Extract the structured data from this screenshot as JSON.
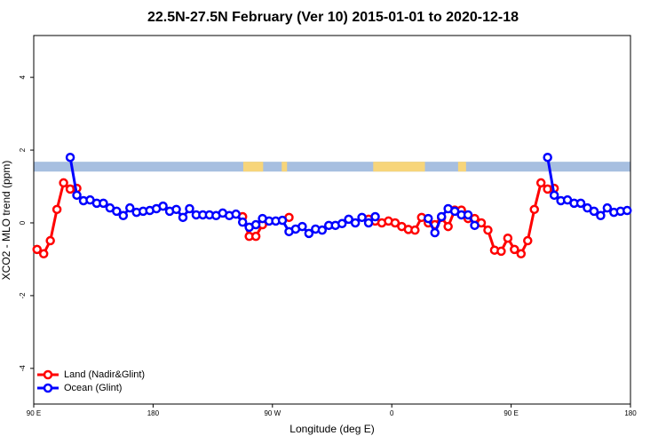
{
  "chart_data": {
    "type": "line",
    "title": "22.5N-27.5N February (Ver 10)   2015-01-01 to 2020-12-18",
    "x_label": "Longitude (deg E)",
    "y_label": "XCO2 - MLO trend (ppm)",
    "xlim": [
      90,
      540
    ],
    "ylim": [
      -4.98,
      5.15
    ],
    "xticks": [
      {
        "value": 90,
        "label": "90 E"
      },
      180,
      {
        "value": 270,
        "label": "90 W"
      },
      {
        "value": 360,
        "label": "0"
      },
      {
        "value": 450,
        "label": "90 E"
      },
      {
        "value": 540,
        "label": "180"
      }
    ],
    "yticks": [
      -4,
      -2,
      0,
      2,
      4
    ],
    "legend": "bottom-left",
    "band": {
      "ylim": [
        1.41,
        1.68
      ],
      "ocean_color": "#a7bfe0",
      "land_color": "#f7d57a",
      "land": [
        [
          248,
          263
        ],
        [
          277,
          281
        ],
        [
          346,
          385
        ],
        [
          410,
          416
        ]
      ]
    },
    "x": [
      92.5,
      97.5,
      102.5,
      107.5,
      112.5,
      117.5,
      122.5,
      127.5,
      132.5,
      137.5,
      142.5,
      147.5,
      152.5,
      157.5,
      162.5,
      167.5,
      172.5,
      177.5,
      182.5,
      187.5,
      192.5,
      197.5,
      202.5,
      207.5,
      212.5,
      217.5,
      222.5,
      227.5,
      232.5,
      237.5,
      242.5,
      247.5,
      252.5,
      257.5,
      262.5,
      267.5,
      272.5,
      277.5,
      282.5,
      287.5,
      292.5,
      297.5,
      302.5,
      307.5,
      312.5,
      317.5,
      322.5,
      327.5,
      332.5,
      337.5,
      342.5,
      347.5,
      352.5,
      357.5,
      362.5,
      367.5,
      372.5,
      377.5,
      382.5,
      387.5,
      392.5,
      397.5,
      402.5,
      407.5,
      412.5,
      417.5,
      422.5,
      427.5,
      432.5,
      437.5,
      442.5,
      447.5,
      452.5,
      457.5,
      462.5,
      467.5,
      472.5,
      477.5,
      482.5,
      487.5,
      492.5,
      497.5,
      502.5,
      507.5,
      512.5,
      517.5,
      522.5,
      527.5,
      532.5,
      537.5
    ],
    "series": [
      {
        "name": "Land (Nadir&Glint)",
        "color": "#ff0000",
        "values": [
          -0.73,
          -0.85,
          -0.49,
          0.37,
          1.1,
          0.93,
          0.95,
          null,
          null,
          null,
          null,
          null,
          null,
          null,
          null,
          null,
          null,
          null,
          null,
          null,
          null,
          null,
          null,
          null,
          null,
          null,
          null,
          null,
          null,
          null,
          null,
          0.17,
          -0.37,
          -0.37,
          -0.05,
          null,
          null,
          null,
          0.15,
          null,
          null,
          null,
          null,
          null,
          null,
          null,
          null,
          null,
          null,
          null,
          0.1,
          0.05,
          0.0,
          0.05,
          0.0,
          -0.1,
          -0.18,
          -0.2,
          0.15,
          0.0,
          -0.05,
          0.15,
          -0.1,
          0.35,
          0.35,
          0.12,
          0.12,
          0.0,
          -0.2,
          -0.75,
          -0.78,
          -0.42,
          -0.73,
          -0.85,
          -0.49,
          0.37,
          1.1,
          0.93,
          0.95,
          null,
          null,
          null,
          null,
          null,
          null,
          null,
          null,
          null,
          null,
          null
        ]
      },
      {
        "name": "Ocean (Glint)",
        "color": "#0000ff",
        "values": [
          null,
          null,
          null,
          null,
          null,
          1.8,
          0.76,
          0.61,
          0.63,
          0.54,
          0.54,
          0.41,
          0.32,
          0.2,
          0.41,
          0.29,
          0.32,
          0.34,
          0.39,
          0.46,
          0.32,
          0.37,
          0.15,
          0.39,
          0.22,
          0.22,
          0.22,
          0.2,
          0.27,
          0.2,
          0.24,
          0.02,
          -0.12,
          -0.05,
          0.12,
          0.05,
          0.05,
          0.07,
          -0.24,
          -0.17,
          -0.1,
          -0.29,
          -0.17,
          -0.2,
          -0.07,
          -0.07,
          -0.02,
          0.1,
          0.0,
          0.15,
          0.0,
          0.17,
          null,
          null,
          null,
          null,
          null,
          null,
          null,
          0.12,
          -0.27,
          0.17,
          0.39,
          0.32,
          0.22,
          0.22,
          -0.07,
          null,
          null,
          null,
          null,
          null,
          null,
          null,
          null,
          null,
          null,
          1.8,
          0.76,
          0.61,
          0.63,
          0.54,
          0.54,
          0.41,
          0.32,
          0.2,
          0.41,
          0.29,
          0.32,
          0.34
        ]
      }
    ]
  }
}
